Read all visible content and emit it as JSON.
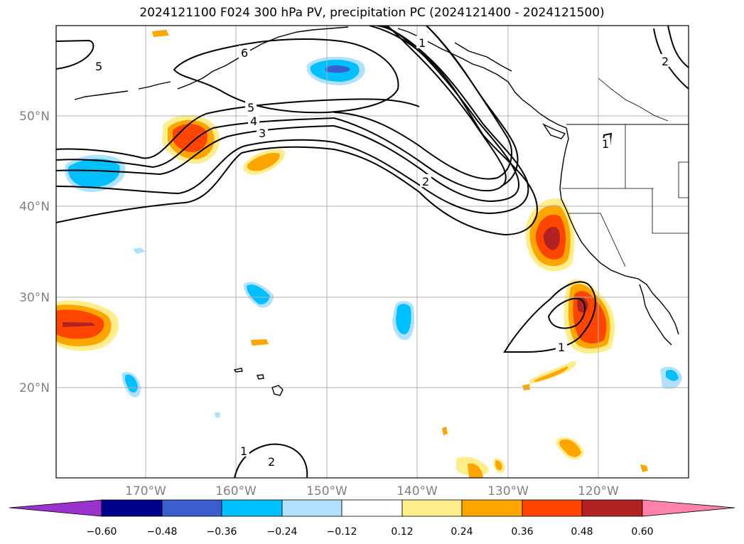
{
  "title": "2024121100 F024 300 hPa PV, precipitation PC (2024121400 - 2024121500)",
  "lat_ticks": [
    {
      "label": "50°N",
      "value": 50
    },
    {
      "label": "40°N",
      "value": 40
    },
    {
      "label": "30°N",
      "value": 30
    },
    {
      "label": "20°N",
      "value": 20
    }
  ],
  "lon_ticks": [
    {
      "label": "170°W",
      "value": -170
    },
    {
      "label": "160°W",
      "value": -160
    },
    {
      "label": "150°W",
      "value": -150
    },
    {
      "label": "140°W",
      "value": -140
    },
    {
      "label": "130°W",
      "value": -130
    },
    {
      "label": "120°W",
      "value": -120
    }
  ],
  "colorbar": {
    "colors": [
      "#9a32cd",
      "#00008b",
      "#3a5fcd",
      "#00bfff",
      "#b0e2ff",
      "#ffffff",
      "#ffec8b",
      "#ffa500",
      "#ff4500",
      "#b22222",
      "#ff82ab"
    ],
    "tick_labels": [
      "−0.60",
      "−0.48",
      "−0.36",
      "−0.24",
      "−0.12",
      "0.12",
      "0.24",
      "0.36",
      "0.48",
      "0.60"
    ]
  },
  "contour_labels": [
    "5",
    "6",
    "5",
    "4",
    "3",
    "1",
    "2",
    "2",
    "1",
    "1",
    "2",
    "1"
  ]
}
